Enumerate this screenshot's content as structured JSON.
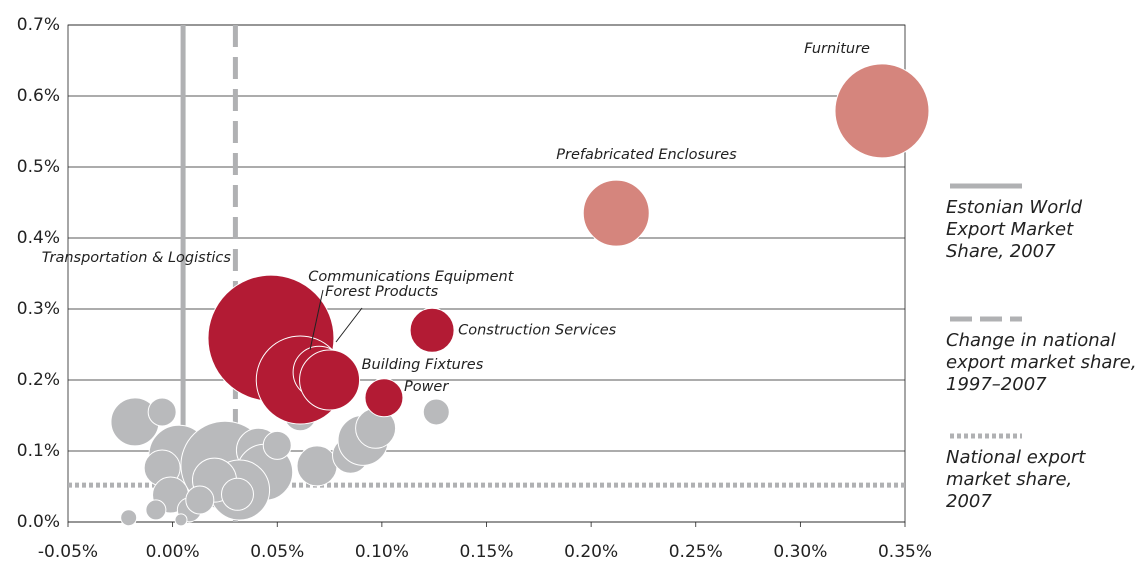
{
  "chart_data": {
    "type": "bubble",
    "xlim": [
      -0.05,
      0.35
    ],
    "ylim": [
      0,
      0.7
    ],
    "xticks": [
      {
        "value": -0.05,
        "label": "-0.05%"
      },
      {
        "value": 0,
        "label": "0.00%"
      },
      {
        "value": 0.05,
        "label": "0.05%"
      },
      {
        "value": 0.1,
        "label": "0.10%"
      },
      {
        "value": 0.15,
        "label": "0.15%"
      },
      {
        "value": 0.2,
        "label": "0.20%"
      },
      {
        "value": 0.25,
        "label": "0.25%"
      },
      {
        "value": 0.3,
        "label": "0.30%"
      },
      {
        "value": 0.35,
        "label": "0.35%"
      }
    ],
    "yticks": [
      {
        "value": 0,
        "label": "0.0%"
      },
      {
        "value": 0.1,
        "label": "0.1%"
      },
      {
        "value": 0.2,
        "label": "0.2%"
      },
      {
        "value": 0.3,
        "label": "0.3%"
      },
      {
        "value": 0.4,
        "label": "0.4%"
      },
      {
        "value": 0.5,
        "label": "0.5%"
      },
      {
        "value": 0.6,
        "label": "0.6%"
      },
      {
        "value": 0.7,
        "label": "0.7%"
      }
    ],
    "grid": true,
    "series": [
      {
        "color": "#b9babc",
        "x": [
          -0.018,
          -0.005,
          0.003,
          -0.005,
          0.025,
          0.041,
          0.044,
          0.032,
          0.02,
          0.031,
          -0.001,
          0.008,
          -0.008,
          -0.021,
          0.004,
          0.061,
          0.069,
          0.085,
          0.091,
          0.097,
          0.126,
          0.05,
          0.013
        ],
        "y": [
          0.141,
          0.155,
          0.094,
          0.076,
          0.08,
          0.101,
          0.07,
          0.045,
          0.059,
          0.039,
          0.038,
          0.017,
          0.017,
          0.006,
          0.003,
          0.151,
          0.079,
          0.094,
          0.115,
          0.132,
          0.155,
          0.108,
          0.031
        ],
        "size": [
          24,
          14,
          30,
          18,
          44,
          22,
          28,
          30,
          22,
          16,
          18,
          12,
          10,
          8,
          6,
          16,
          20,
          18,
          25,
          20,
          13,
          14,
          14
        ]
      },
      {
        "color": "#b31b34",
        "labels": [
          "Transportation & Logistics",
          "Communications Equipment",
          "Forest Products",
          "Building Fixtures",
          "Power",
          "Construction Services"
        ],
        "x": [
          0.047,
          0.061,
          0.07,
          0.075,
          0.101,
          0.124
        ],
        "y": [
          0.259,
          0.2,
          0.211,
          0.2,
          0.175,
          0.27
        ],
        "size": [
          63,
          44,
          26,
          30,
          19,
          22
        ]
      },
      {
        "color": "#d5857d",
        "labels": [
          "Furniture",
          "Prefabricated Enclosures"
        ],
        "x": [
          0.339,
          0.212
        ],
        "y": [
          0.579,
          0.435
        ],
        "size": [
          47,
          33
        ]
      }
    ],
    "reference_lines": [
      {
        "label": "Estonian World Export Market Share, 2007",
        "axis": "x",
        "value": 0.005,
        "style": "solid",
        "color": "#b0b1b3"
      },
      {
        "label": "Change in national export market share, 1997–2007",
        "axis": "x",
        "value": 0.03,
        "style": "dashed",
        "color": "#b0b1b3"
      },
      {
        "label": "National export market share, 2007",
        "axis": "y",
        "value": 0.052,
        "style": "dotted",
        "color": "#b0b1b3"
      }
    ]
  }
}
